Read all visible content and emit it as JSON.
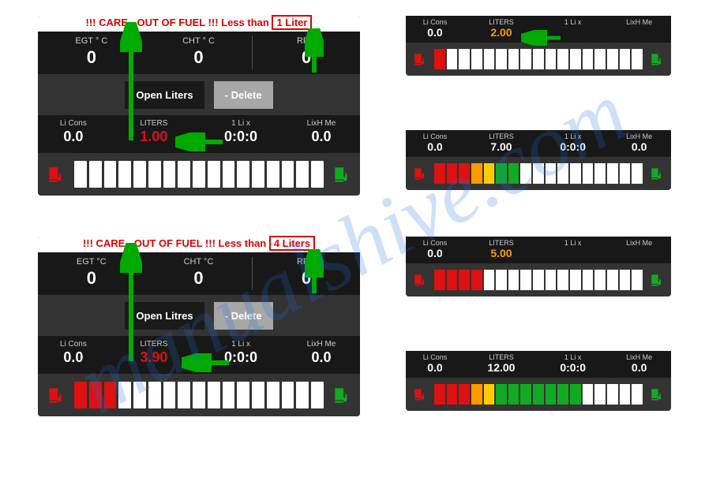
{
  "colors": {
    "red": "#d11",
    "green": "#1a2",
    "orange": "#f90",
    "yellow": "#fc0",
    "white": "#fff",
    "arrow": "#0a0"
  },
  "panelA": {
    "warn_prefix": "!!! CARE - OUT OF FUEL !!! Less than",
    "warn_box": "1 Liter",
    "egt_label": "EGT ° C",
    "egt_val": "0",
    "cht_label": "CHT ° C",
    "cht_val": "0",
    "rpm_label": "RPM",
    "rpm_val": "0",
    "open_btn": "Open Liters",
    "del_btn": "- Delete",
    "cons_label": "Li Cons",
    "cons_val": "0.0",
    "lit_label": "LITERS",
    "lit_val": "1.00",
    "lit_color": "#d11",
    "li1_label": "1 Li x",
    "li1_val": "0:0:0",
    "me_label": "LixH Me",
    "me_val": "0.0",
    "bars": [
      "#fff",
      "#fff",
      "#fff",
      "#fff",
      "#fff",
      "#fff",
      "#fff",
      "#fff",
      "#fff",
      "#fff",
      "#fff",
      "#fff",
      "#fff",
      "#fff",
      "#fff",
      "#fff",
      "#fff"
    ]
  },
  "panelB": {
    "warn_prefix": "!!! CARE - OUT OF FUEL !!! Less than",
    "warn_box": "4 Liters",
    "egt_label": "EGT °C",
    "egt_val": "0",
    "cht_label": "CHT °C",
    "cht_val": "0",
    "rpm_label": "RPM",
    "rpm_val": "0",
    "open_btn": "Open Litres",
    "del_btn": "- Delete",
    "cons_label": "Li Cons",
    "cons_val": "0.0",
    "lit_label": "LITERS",
    "lit_val": "3.90",
    "lit_color": "#d11",
    "li1_label": "1 Li x",
    "li1_val": "0:0:0",
    "me_label": "LixH Me",
    "me_val": "0.0",
    "bars": [
      "#d11",
      "#d11",
      "#d11",
      "#fff",
      "#fff",
      "#fff",
      "#fff",
      "#fff",
      "#fff",
      "#fff",
      "#fff",
      "#fff",
      "#fff",
      "#fff",
      "#fff",
      "#fff",
      "#fff"
    ]
  },
  "mini1": {
    "cons_label": "Li Cons",
    "cons_val": "0.0",
    "lit_label": "LITERS",
    "lit_val": "2.00",
    "lit_color": "#f90",
    "li1_label": "1 Li x",
    "li1_val": " ",
    "me_label": "LixH Me",
    "me_val": " ",
    "bars": [
      "#d11",
      "#fff",
      "#fff",
      "#fff",
      "#fff",
      "#fff",
      "#fff",
      "#fff",
      "#fff",
      "#fff",
      "#fff",
      "#fff",
      "#fff",
      "#fff",
      "#fff",
      "#fff",
      "#fff"
    ]
  },
  "mini2": {
    "cons_label": "Li Cons",
    "cons_val": "0.0",
    "lit_label": "LITERS",
    "lit_val": "7.00",
    "lit_color": "#fff",
    "li1_label": "1 Li x",
    "li1_val": "0:0:0",
    "me_label": "LixH Me",
    "me_val": "0.0",
    "bars": [
      "#d11",
      "#d11",
      "#d11",
      "#f90",
      "#fc0",
      "#1a2",
      "#1a2",
      "#fff",
      "#fff",
      "#fff",
      "#fff",
      "#fff",
      "#fff",
      "#fff",
      "#fff",
      "#fff",
      "#fff"
    ]
  },
  "mini3": {
    "cons_label": "Li Cons",
    "cons_val": "0.0",
    "lit_label": "LITERS",
    "lit_val": "5.00",
    "lit_color": "#f90",
    "li1_label": "1 Li x",
    "li1_val": " ",
    "me_label": "LixH Me",
    "me_val": " ",
    "bars": [
      "#d11",
      "#d11",
      "#d11",
      "#d11",
      "#fff",
      "#fff",
      "#fff",
      "#fff",
      "#fff",
      "#fff",
      "#fff",
      "#fff",
      "#fff",
      "#fff",
      "#fff",
      "#fff",
      "#fff"
    ]
  },
  "mini4": {
    "cons_label": "Li Cons",
    "cons_val": "0.0",
    "lit_label": "LITERS",
    "lit_val": "12.00",
    "lit_color": "#fff",
    "li1_label": "1 Li x",
    "li1_val": "0:0:0",
    "me_label": "LixH Me",
    "me_val": "0.0",
    "bars": [
      "#d11",
      "#d11",
      "#d11",
      "#f90",
      "#fc0",
      "#1a2",
      "#1a2",
      "#1a2",
      "#1a2",
      "#1a2",
      "#1a2",
      "#1a2",
      "#fff",
      "#fff",
      "#fff",
      "#fff",
      "#fff"
    ]
  }
}
